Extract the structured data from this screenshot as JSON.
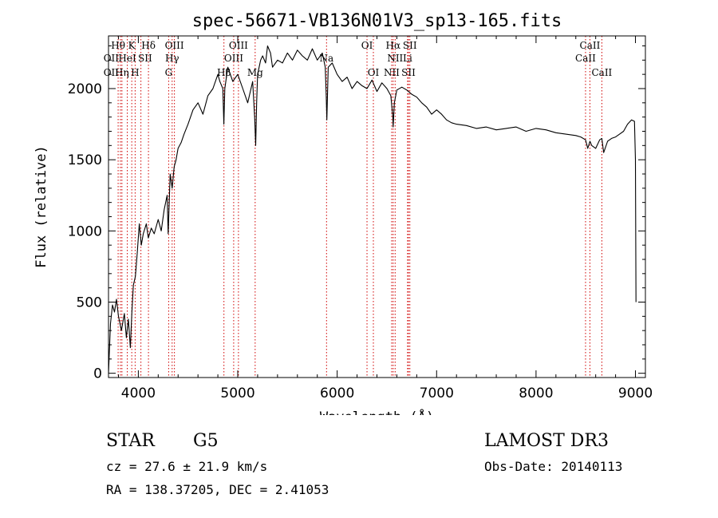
{
  "chart_data": {
    "type": "line",
    "title": "spec-56671-VB136N01V3_sp13-165.fits",
    "xlabel": "Wavelength (Å)",
    "ylabel": "Flux (relative)",
    "xlim": [
      3700,
      9100
    ],
    "ylim": [
      -30,
      2370
    ],
    "xticks": [
      4000,
      5000,
      6000,
      7000,
      8000,
      9000
    ],
    "yticks": [
      0,
      500,
      1000,
      1500,
      2000
    ],
    "grid": false,
    "series": [
      {
        "name": "spectrum",
        "x": [
          3700,
          3720,
          3740,
          3760,
          3780,
          3800,
          3830,
          3860,
          3880,
          3900,
          3920,
          3935,
          3950,
          3970,
          3990,
          4010,
          4030,
          4050,
          4080,
          4100,
          4130,
          4160,
          4200,
          4230,
          4260,
          4290,
          4300,
          4320,
          4340,
          4360,
          4380,
          4400,
          4430,
          4460,
          4500,
          4550,
          4600,
          4650,
          4700,
          4750,
          4800,
          4820,
          4850,
          4860,
          4870,
          4900,
          4950,
          5000,
          5050,
          5100,
          5150,
          5170,
          5180,
          5190,
          5200,
          5230,
          5250,
          5280,
          5300,
          5330,
          5350,
          5400,
          5450,
          5500,
          5550,
          5600,
          5650,
          5700,
          5750,
          5800,
          5850,
          5880,
          5890,
          5896,
          5910,
          5950,
          6000,
          6050,
          6100,
          6150,
          6200,
          6250,
          6300,
          6350,
          6400,
          6450,
          6500,
          6540,
          6560,
          6563,
          6575,
          6600,
          6650,
          6700,
          6750,
          6800,
          6850,
          6900,
          6950,
          7000,
          7050,
          7100,
          7150,
          7200,
          7300,
          7400,
          7500,
          7600,
          7700,
          7800,
          7900,
          8000,
          8100,
          8200,
          8300,
          8400,
          8450,
          8498,
          8520,
          8542,
          8560,
          8600,
          8640,
          8662,
          8680,
          8720,
          8760,
          8800,
          8840,
          8880,
          8920,
          8960,
          8990,
          9000,
          9005
        ],
        "values": [
          0,
          350,
          480,
          430,
          520,
          400,
          300,
          420,
          250,
          380,
          180,
          430,
          620,
          680,
          850,
          1050,
          900,
          980,
          1050,
          950,
          1020,
          980,
          1080,
          1000,
          1150,
          1250,
          980,
          1400,
          1300,
          1450,
          1500,
          1580,
          1620,
          1680,
          1750,
          1850,
          1900,
          1820,
          1950,
          2000,
          2100,
          2050,
          2000,
          1750,
          2000,
          2150,
          2050,
          2100,
          2000,
          1900,
          2050,
          1800,
          1600,
          1900,
          2100,
          2200,
          2230,
          2180,
          2300,
          2250,
          2150,
          2200,
          2180,
          2250,
          2200,
          2270,
          2230,
          2200,
          2280,
          2200,
          2250,
          2150,
          1950,
          1780,
          2150,
          2180,
          2100,
          2050,
          2080,
          2000,
          2050,
          2020,
          2000,
          2060,
          1980,
          2040,
          2000,
          1950,
          1800,
          1730,
          1900,
          1990,
          2010,
          1990,
          1960,
          1940,
          1900,
          1870,
          1820,
          1850,
          1820,
          1780,
          1760,
          1750,
          1740,
          1720,
          1730,
          1710,
          1720,
          1730,
          1700,
          1720,
          1710,
          1690,
          1680,
          1670,
          1660,
          1640,
          1580,
          1630,
          1600,
          1580,
          1640,
          1650,
          1550,
          1630,
          1650,
          1660,
          1680,
          1700,
          1750,
          1780,
          1770,
          1500,
          500
        ]
      }
    ],
    "line_markers": {
      "positions": [
        3797,
        3820,
        3835,
        3889,
        3934,
        3968,
        4026,
        4102,
        4305,
        4340,
        4363,
        4861,
        4959,
        5007,
        5175,
        5893,
        6300,
        6364,
        6548,
        6563,
        6583,
        6708,
        6717,
        6731,
        8498,
        8542,
        8662
      ],
      "labels": [
        {
          "text": "Hθ",
          "x": 3797,
          "row": 1
        },
        {
          "text": "K",
          "x": 3934,
          "row": 1
        },
        {
          "text": "Hδ",
          "x": 4102,
          "row": 1
        },
        {
          "text": "OIII",
          "x": 4363,
          "row": 1
        },
        {
          "text": "OIII",
          "x": 5007,
          "row": 1
        },
        {
          "text": "OI",
          "x": 6300,
          "row": 1
        },
        {
          "text": "Hα",
          "x": 6563,
          "row": 1
        },
        {
          "text": "SII",
          "x": 6731,
          "row": 1
        },
        {
          "text": "CaII",
          "x": 8542,
          "row": 1
        },
        {
          "text": "OII",
          "x": 3727,
          "row": 2
        },
        {
          "text": "HeI",
          "x": 3889,
          "row": 2
        },
        {
          "text": "SII",
          "x": 4068,
          "row": 2
        },
        {
          "text": "Hγ",
          "x": 4340,
          "row": 2
        },
        {
          "text": "OIII",
          "x": 4959,
          "row": 2
        },
        {
          "text": "Na",
          "x": 5893,
          "row": 2
        },
        {
          "text": "NII",
          "x": 6583,
          "row": 2
        },
        {
          "text": "Li",
          "x": 6708,
          "row": 2
        },
        {
          "text": "CaII",
          "x": 8498,
          "row": 2
        },
        {
          "text": "OII",
          "x": 3727,
          "row": 3
        },
        {
          "text": "Hη",
          "x": 3835,
          "row": 3
        },
        {
          "text": "H",
          "x": 3968,
          "row": 3
        },
        {
          "text": "G",
          "x": 4305,
          "row": 3
        },
        {
          "text": "Hβ",
          "x": 4861,
          "row": 3
        },
        {
          "text": "Mg",
          "x": 5175,
          "row": 3
        },
        {
          "text": "OI",
          "x": 6364,
          "row": 3
        },
        {
          "text": "NII",
          "x": 6548,
          "row": 3
        },
        {
          "text": "SII",
          "x": 6717,
          "row": 3
        },
        {
          "text": "CaII",
          "x": 8662,
          "row": 3
        }
      ]
    }
  },
  "info": {
    "object_class": "STAR",
    "subclass": "G5",
    "survey": "LAMOST DR3",
    "cz": "cz = 27.6 ± 21.9 km/s",
    "obs_date": "Obs-Date: 20140113",
    "coords": "RA = 138.37205, DEC =   2.41053"
  },
  "colors": {
    "spectrum": "#000000",
    "marker": "#d00000",
    "axis": "#000000"
  }
}
